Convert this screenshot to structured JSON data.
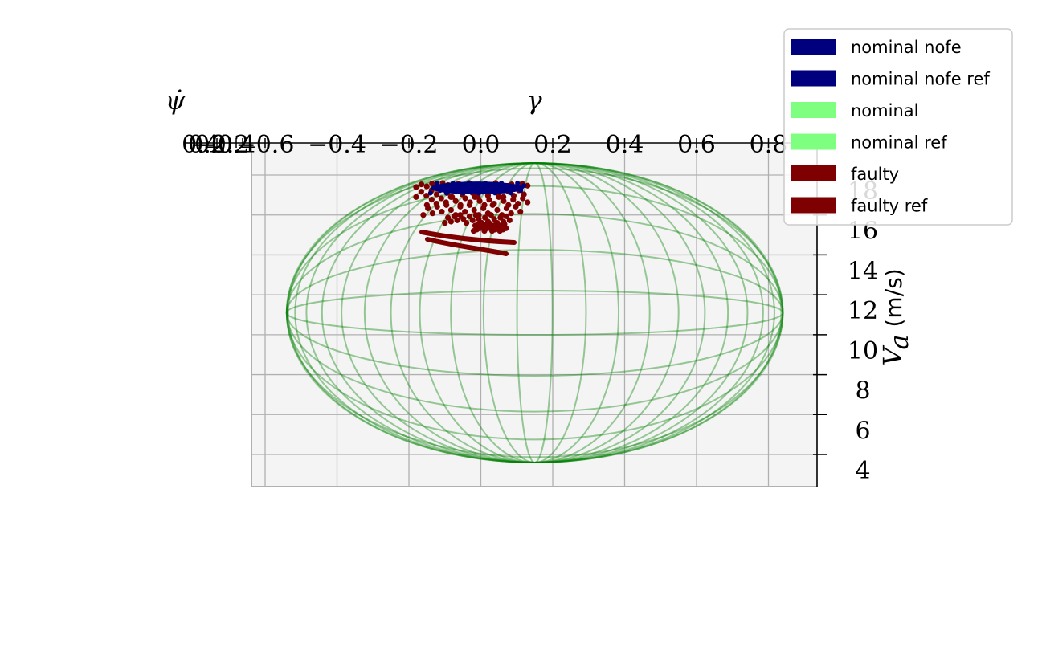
{
  "chart_data": {
    "type": "scatter",
    "projection": "3d",
    "x_axis": {
      "label": "γ",
      "ticks": [
        "−0.6",
        "−0.4",
        "−0.2",
        "0.0",
        "0.2",
        "0.4",
        "0.6",
        "0.8"
      ],
      "tick_values": [
        -0.6,
        -0.4,
        -0.2,
        0.0,
        0.2,
        0.4,
        0.6,
        0.8
      ],
      "range": [
        -0.64,
        0.92
      ]
    },
    "y_axis": {
      "label": "ψ̇",
      "ticks": [
        "−0.4",
        "−0.2",
        "0.0",
        "0.2",
        "0.4"
      ],
      "tick_values": [
        -0.4,
        -0.2,
        0.0,
        0.2,
        0.4
      ]
    },
    "z_axis": {
      "label_math": "V",
      "label_sub": "a",
      "label_unit": " (m/s)",
      "ticks": [
        "4",
        "6",
        "8",
        "10",
        "12",
        "14",
        "16",
        "18"
      ],
      "tick_values": [
        4,
        6,
        8,
        10,
        12,
        14,
        16,
        18
      ],
      "range": [
        3.2,
        20.4
      ]
    },
    "grid": true,
    "legend_position": "top-right",
    "ellipsoid": {
      "center": {
        "x": 0.15,
        "z": 11.1
      },
      "semi_x": 0.69,
      "semi_z": 7.5,
      "color": "#008000"
    },
    "series": [
      {
        "name": "nominal nofe",
        "color": "#00007f",
        "points": []
      },
      {
        "name": "nominal nofe ref",
        "color": "#00007f",
        "points": []
      },
      {
        "name": "nominal",
        "color": "#7fff7f",
        "points": []
      },
      {
        "name": "nominal ref",
        "color": "#7fff7f",
        "points": []
      },
      {
        "name": "faulty",
        "color": "#7f0000",
        "points": []
      },
      {
        "name": "faulty ref",
        "color": "#7f0000",
        "points": []
      }
    ],
    "clusters": {
      "nominal_nofe": {
        "x_range": [
          -0.14,
          0.12
        ],
        "z_range": [
          17.1,
          17.6
        ],
        "color": "#00007f"
      },
      "faulty": {
        "x_range": [
          -0.18,
          0.13
        ],
        "z_range": [
          14.0,
          17.6
        ],
        "color": "#7f0000"
      }
    }
  }
}
